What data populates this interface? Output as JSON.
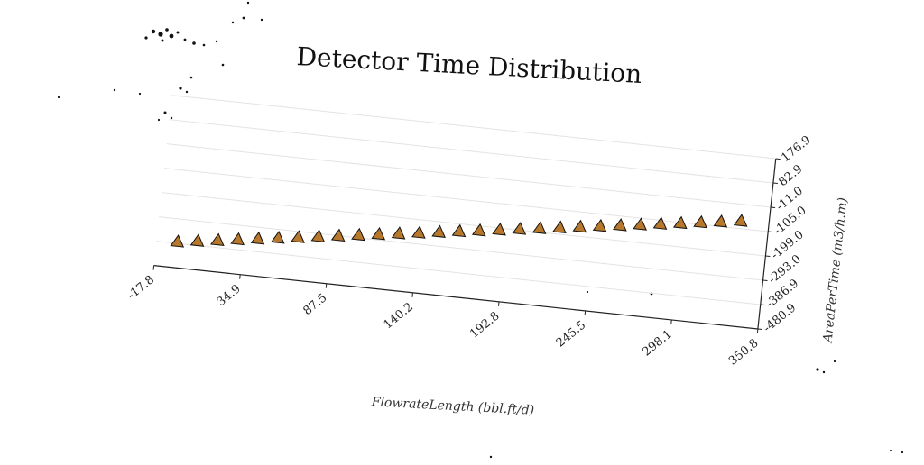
{
  "chart_data": {
    "type": "scatter",
    "title": "Detector Time Distribution",
    "xlabel": "FlowrateLength (bbl.ft/d)",
    "ylabel": "AreaPerTime (m3/h.m)",
    "x_ticks": [
      "-17.8",
      "34.9",
      "87.5",
      "140.2",
      "192.8",
      "245.5",
      "298.1",
      "350.8"
    ],
    "y_ticks": [
      "176.9",
      "82.9",
      "-11.0",
      "-105.0",
      "-199.0",
      "-293.0",
      "-386.9",
      "-480.9"
    ],
    "xlim": [
      -17.8,
      350.8
    ],
    "ylim": [
      -480.9,
      176.9
    ],
    "grid": true,
    "marker": "triangle",
    "marker_color": "#b8782c",
    "series": [
      {
        "x": [
          -5.0,
          7.1,
          19.2,
          31.3,
          43.4,
          55.5,
          67.6,
          79.7,
          91.8,
          103.9,
          116.0,
          128.1,
          140.2,
          152.3,
          164.4,
          176.5,
          188.6,
          200.7,
          212.8,
          224.9,
          237.0,
          249.1,
          261.2,
          273.3,
          285.4,
          297.5,
          309.6,
          321.7,
          333.8
        ],
        "y": [
          -380.0,
          -369.1,
          -358.2,
          -347.3,
          -336.4,
          -325.5,
          -314.6,
          -303.7,
          -292.8,
          -281.9,
          -271.0,
          -260.1,
          -249.2,
          -238.3,
          -227.4,
          -216.5,
          -205.6,
          -194.7,
          -183.8,
          -172.9,
          -162.0,
          -151.1,
          -140.2,
          -129.3,
          -118.4,
          -107.5,
          -96.6,
          -85.7,
          -75.0
        ]
      }
    ]
  }
}
